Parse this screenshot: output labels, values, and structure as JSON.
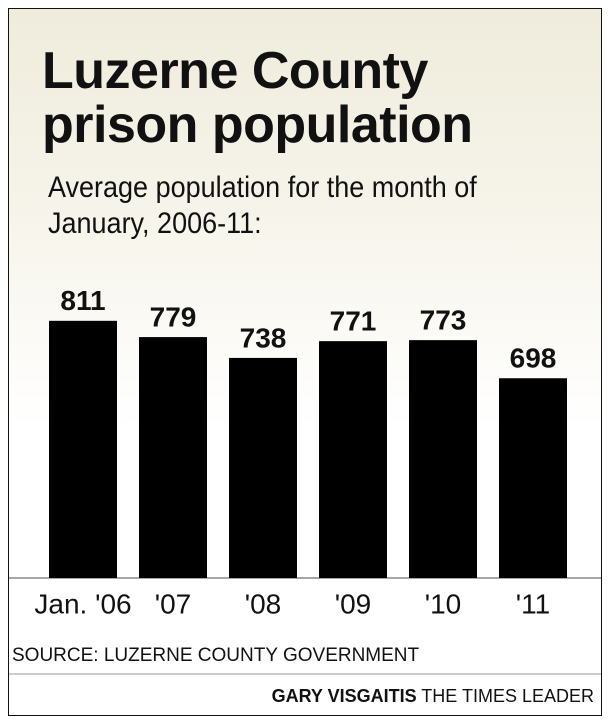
{
  "chart_data": {
    "type": "bar",
    "title": "Luzerne County prison population",
    "subtitle": "Average population for the month of January, 2006-11:",
    "categories": [
      "Jan. '06",
      "'07",
      "'08",
      "'09",
      "'10",
      "'11"
    ],
    "values": [
      811,
      779,
      738,
      771,
      773,
      698
    ],
    "color": "#000000",
    "ylim": [
      305,
      850
    ],
    "source": "SOURCE: LUZERNE COUNTY GOVERNMENT",
    "credit": {
      "author": "GARY VISGAITIS",
      "outlet": "THE TIMES LEADER"
    }
  }
}
